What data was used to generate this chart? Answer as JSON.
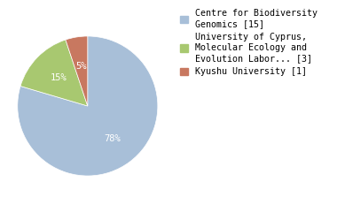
{
  "slices": [
    78,
    15,
    5
  ],
  "labels": [
    "78%",
    "15%",
    "5%"
  ],
  "colors": [
    "#a8bfd8",
    "#a8c870",
    "#c87860"
  ],
  "legend_labels": [
    "Centre for Biodiversity\nGenomics [15]",
    "University of Cyprus,\nMolecular Ecology and\nEvolution Labor... [3]",
    "Kyushu University [1]"
  ],
  "startangle": 90,
  "text_color": "white",
  "font_size": 7.5,
  "legend_font_size": 7.2,
  "legend_family": "monospace"
}
